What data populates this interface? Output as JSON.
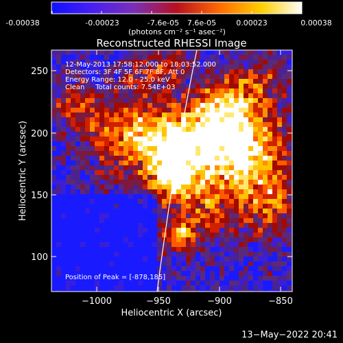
{
  "colorbar": {
    "ticks": [
      "-0.00038",
      "-0.00023",
      "-7.6e-05",
      "7.6e-05",
      "0.00023",
      "0.00038"
    ],
    "units": "(photons cm⁻² s⁻¹ asec⁻²)",
    "colors": [
      "#1010ff",
      "#6a2be0",
      "#a03a78",
      "#d00e00",
      "#ff7a00",
      "#ffd100",
      "#ffffff"
    ]
  },
  "plot": {
    "title": "Reconstructed RHESSI Image",
    "info_lines": [
      "12-May-2013 17:58:12.000 to 18:03:52.000",
      "Detectors: 3F 4F 5F 6F 7F 8F, Att 0",
      "Energy Range: 12.0 - 25.0 keV",
      "Clean     Total counts: 7.54E+03"
    ],
    "peak_label": "Position of Peak = [-878,185]",
    "xlabel": "Heliocentric X (arcsec)",
    "ylabel": "Heliocentric Y (arcsec)",
    "xticks": [
      "−1000",
      "−950",
      "−900",
      "−850"
    ],
    "yticks": [
      "100",
      "150",
      "200",
      "250"
    ],
    "colors": {
      "limb": "#ffffff",
      "axes": "#ffffff"
    }
  },
  "footer": {
    "timestamp": "13−May−2022 20:41"
  }
}
